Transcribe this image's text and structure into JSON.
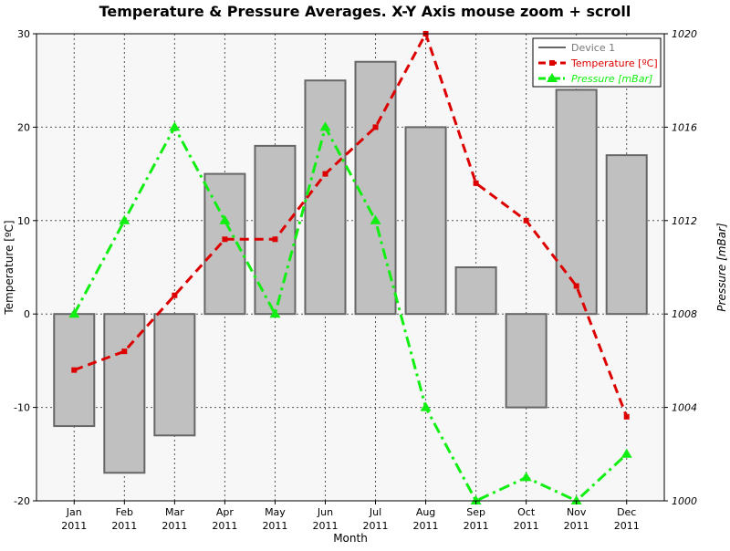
{
  "chart_data": {
    "type": "bar+line",
    "title": "Temperature & Pressure Averages. X-Y Axis mouse zoom + scroll",
    "xlabel": "Month",
    "ylabel_left": "Temperature [ºC]",
    "ylabel_right": "Pressure [mBar]",
    "categories": [
      "Jan",
      "Feb",
      "Mar",
      "Apr",
      "May",
      "Jun",
      "Jul",
      "Aug",
      "Sep",
      "Oct",
      "Nov",
      "Dec"
    ],
    "category_year": "2011",
    "ylim_left": [
      -20,
      30
    ],
    "yticks_left": [
      "-20",
      "-10",
      "0",
      "10",
      "20",
      "30"
    ],
    "ylim_right": [
      1000,
      1020
    ],
    "yticks_right": [
      "1000",
      "1004",
      "1008",
      "1012",
      "1016",
      "1020"
    ],
    "grid": true,
    "legend_position": "top-right",
    "series": [
      {
        "name": "Device 1",
        "kind": "bar",
        "axis": "left",
        "color": "#c0c0c0",
        "values": [
          -12,
          -17,
          -13,
          15,
          18,
          25,
          27,
          20,
          5,
          -10,
          24,
          17
        ]
      },
      {
        "name": "Temperature [ºC]",
        "kind": "line",
        "axis": "left",
        "color": "#dd0000",
        "values": [
          -6,
          -4,
          2,
          8,
          8,
          15,
          20,
          30,
          14,
          10,
          3,
          -11
        ]
      },
      {
        "name": "Pressure [mBar]",
        "kind": "line",
        "axis": "right",
        "color": "#11ee11",
        "values": [
          1008,
          1012,
          1016,
          1012,
          1008,
          1016,
          1012,
          1004,
          1000,
          1001,
          1000,
          1002
        ]
      }
    ]
  }
}
